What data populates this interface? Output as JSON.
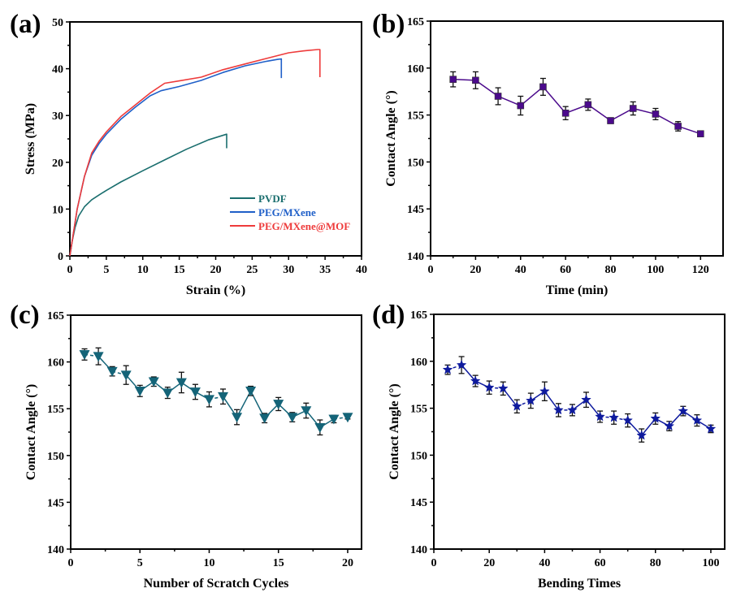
{
  "chart_data": [
    {
      "id": "a",
      "panel_label": "(a)",
      "type": "line",
      "title": "",
      "xlabel": "Strain (%)",
      "ylabel": "Stress (MPa)",
      "xlim": [
        0,
        40
      ],
      "ylim": [
        0,
        50
      ],
      "xticks": [
        0,
        5,
        10,
        15,
        20,
        25,
        30,
        35,
        40
      ],
      "yticks": [
        0,
        10,
        20,
        30,
        40,
        50
      ],
      "grid": false,
      "legend": {
        "placement": "bottom-right"
      },
      "series": [
        {
          "name": "PVDF",
          "color": "#1a6e6e",
          "x": [
            0,
            0.3,
            0.7,
            1.2,
            2,
            3,
            4,
            5,
            7,
            10,
            13,
            16,
            19,
            21.5,
            21.5
          ],
          "y": [
            0,
            3,
            6,
            8.5,
            10.5,
            12,
            13,
            14,
            15.8,
            18.2,
            20.5,
            22.8,
            24.8,
            26,
            23
          ]
        },
        {
          "name": "PEG/MXene",
          "color": "#1f5fc8",
          "x": [
            0,
            0.5,
            1,
            2,
            3,
            4,
            5,
            7,
            9,
            11,
            12.5,
            15,
            18,
            21,
            24,
            27,
            28.5,
            29,
            29
          ],
          "y": [
            0,
            5,
            10,
            17,
            21.5,
            24,
            26,
            29.2,
            31.8,
            34.2,
            35.3,
            36.2,
            37.5,
            39.2,
            40.6,
            41.6,
            42,
            42.1,
            38
          ]
        },
        {
          "name": "PEG/MXene@MOF",
          "color": "#ee3b3b",
          "x": [
            0,
            0.5,
            1,
            2,
            3,
            4,
            5,
            7,
            9,
            11,
            13,
            15,
            18,
            21,
            24,
            27,
            30,
            32,
            34,
            34.3,
            34.3
          ],
          "y": [
            0,
            5,
            10,
            17,
            22,
            24.5,
            26.5,
            29.8,
            32.3,
            34.8,
            36.9,
            37.4,
            38.2,
            39.8,
            41,
            42.2,
            43.4,
            43.8,
            44.1,
            44.1,
            38.2
          ]
        }
      ]
    },
    {
      "id": "b",
      "panel_label": "(b)",
      "type": "line",
      "title": "",
      "xlabel": "Time (min)",
      "ylabel": "Contact Angle (°)",
      "xlim": [
        0,
        130
      ],
      "ylim": [
        140,
        165
      ],
      "xticks": [
        0,
        20,
        40,
        60,
        80,
        100,
        120
      ],
      "yticks": [
        140,
        145,
        150,
        155,
        160,
        165
      ],
      "grid": false,
      "marker": "square",
      "color": "#4b0a8c",
      "dashed_segments": false,
      "x": [
        10,
        20,
        30,
        40,
        50,
        60,
        70,
        80,
        90,
        100,
        110,
        120
      ],
      "y": [
        158.8,
        158.7,
        157.0,
        156.0,
        158.0,
        155.2,
        156.1,
        154.4,
        155.7,
        155.1,
        153.8,
        153.0
      ],
      "err": [
        0.8,
        0.9,
        0.9,
        1.0,
        0.9,
        0.7,
        0.6,
        0.3,
        0.7,
        0.6,
        0.5,
        0.2
      ]
    },
    {
      "id": "c",
      "panel_label": "(c)",
      "type": "line",
      "title": "",
      "xlabel": "Number of Scratch Cycles",
      "ylabel": "Contact Angle (°)",
      "xlim": [
        0,
        21
      ],
      "ylim": [
        140,
        165
      ],
      "xticks": [
        0,
        5,
        10,
        15,
        20
      ],
      "yticks": [
        140,
        145,
        150,
        155,
        160,
        165
      ],
      "grid": false,
      "marker": "triangle-down",
      "color": "#146478",
      "x": [
        1,
        2,
        3,
        4,
        5,
        6,
        7,
        8,
        9,
        10,
        11,
        12,
        13,
        14,
        15,
        16,
        17,
        18,
        19,
        20
      ],
      "y": [
        160.8,
        160.6,
        159.0,
        158.6,
        156.9,
        157.9,
        156.7,
        157.8,
        156.8,
        156.0,
        156.3,
        154.1,
        156.9,
        154.0,
        155.5,
        154.1,
        154.8,
        153.0,
        153.9,
        154.1
      ],
      "err": [
        0.6,
        0.9,
        0.5,
        1.0,
        0.6,
        0.5,
        0.6,
        1.1,
        0.8,
        0.8,
        0.8,
        0.8,
        0.5,
        0.5,
        0.7,
        0.5,
        0.8,
        0.8,
        0.4,
        0.2
      ]
    },
    {
      "id": "d",
      "panel_label": "(d)",
      "type": "line",
      "title": "",
      "xlabel": "Bending Times",
      "ylabel": "Contact Angle (°)",
      "xlim": [
        0,
        105
      ],
      "ylim": [
        140,
        165
      ],
      "xticks": [
        0,
        20,
        40,
        60,
        80,
        100
      ],
      "yticks": [
        140,
        145,
        150,
        155,
        160,
        165
      ],
      "grid": false,
      "marker": "star",
      "color": "#0e1a9e",
      "x": [
        5,
        10,
        15,
        20,
        25,
        30,
        35,
        40,
        45,
        50,
        55,
        60,
        65,
        70,
        75,
        80,
        85,
        90,
        95,
        100
      ],
      "y": [
        159.1,
        159.6,
        157.9,
        157.2,
        157.1,
        155.2,
        155.8,
        156.8,
        154.8,
        154.8,
        155.9,
        154.1,
        154.0,
        153.7,
        152.1,
        153.9,
        153.1,
        154.7,
        153.7,
        152.8
      ],
      "err": [
        0.5,
        0.9,
        0.6,
        0.7,
        0.7,
        0.7,
        0.8,
        1.0,
        0.7,
        0.6,
        0.8,
        0.6,
        0.7,
        0.7,
        0.7,
        0.6,
        0.5,
        0.5,
        0.6,
        0.4
      ]
    }
  ]
}
